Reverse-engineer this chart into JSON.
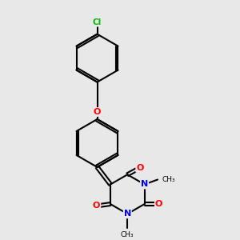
{
  "background_color": "#e8e8e8",
  "bond_color": "#000000",
  "bond_width": 1.5,
  "atom_colors": {
    "Cl": "#00bb00",
    "O": "#ff0000",
    "N": "#0000ee",
    "C": "#000000"
  },
  "font_size_atom": 8,
  "figsize": [
    3.0,
    3.0
  ],
  "dpi": 100
}
